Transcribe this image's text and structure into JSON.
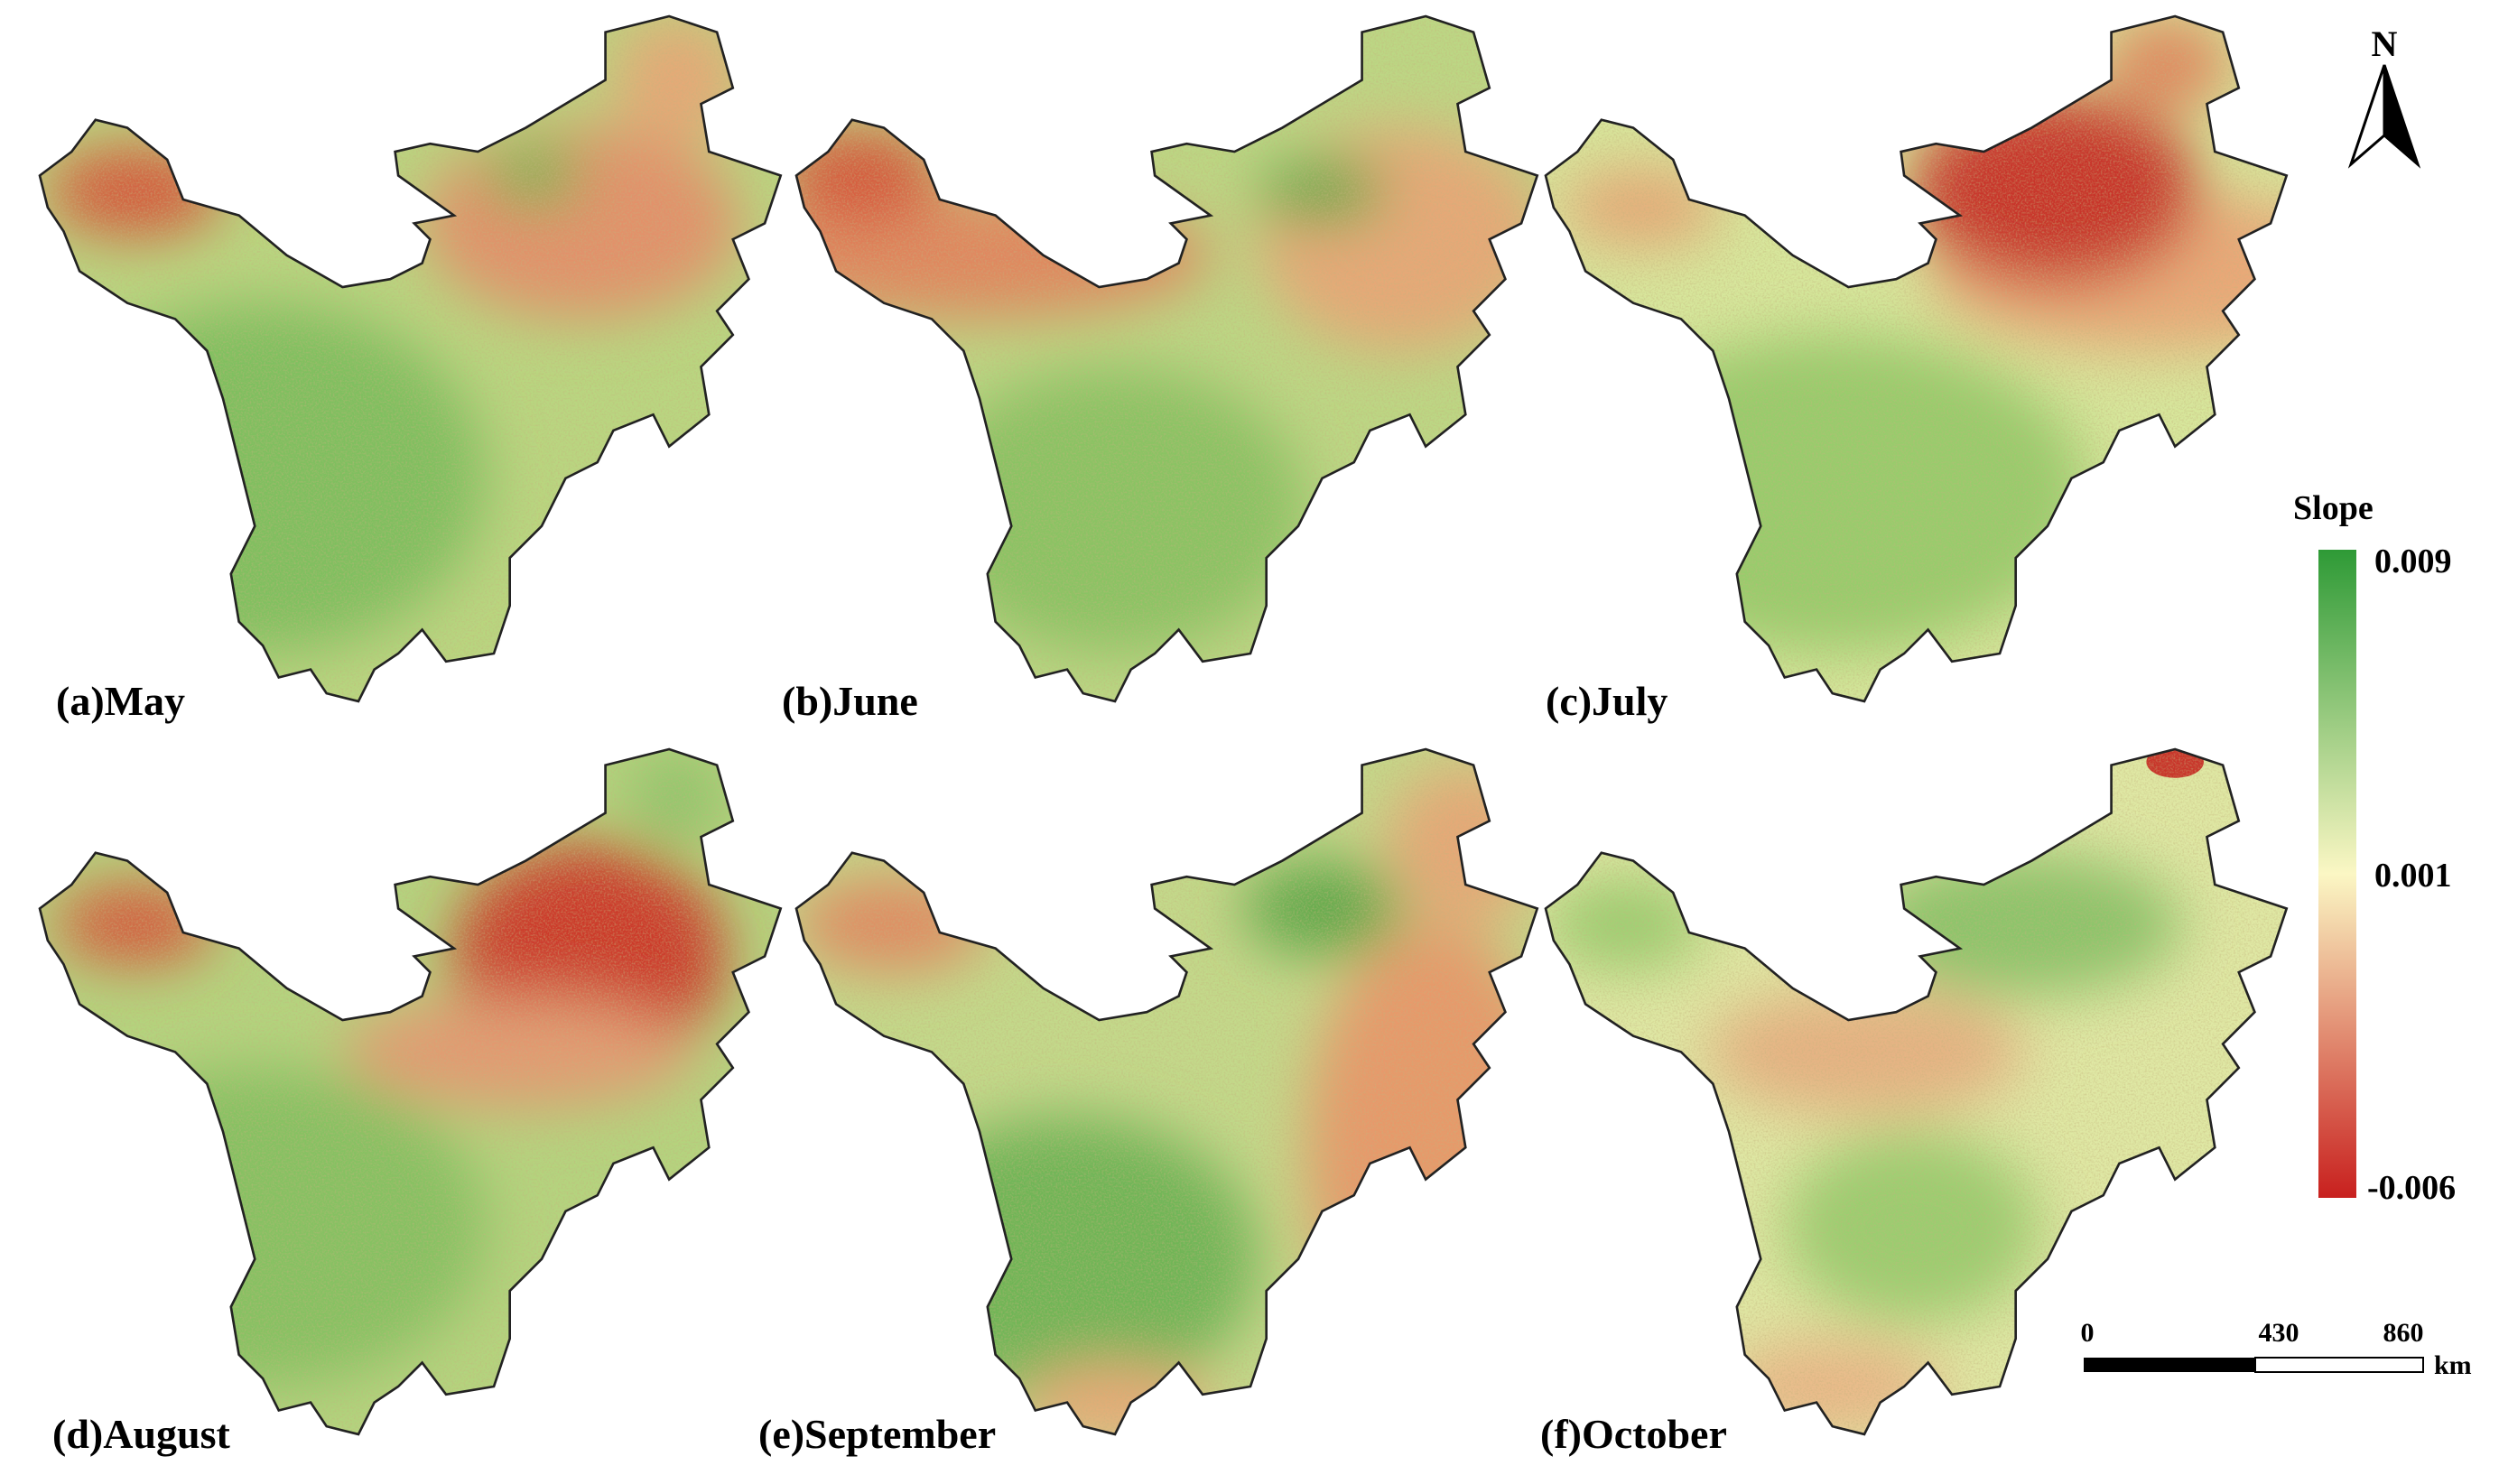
{
  "panels": [
    {
      "label": "(a)May"
    },
    {
      "label": "(b)June"
    },
    {
      "label": "(c)July"
    },
    {
      "label": "(d)August"
    },
    {
      "label": "(e)September"
    },
    {
      "label": "(f)October"
    }
  ],
  "legend": {
    "title": "Slope",
    "max": 0.009,
    "mid": 0.001,
    "min": -0.006
  },
  "scale_bar": {
    "labels": [
      0,
      430,
      860
    ],
    "unit": "km"
  },
  "north": "N"
}
